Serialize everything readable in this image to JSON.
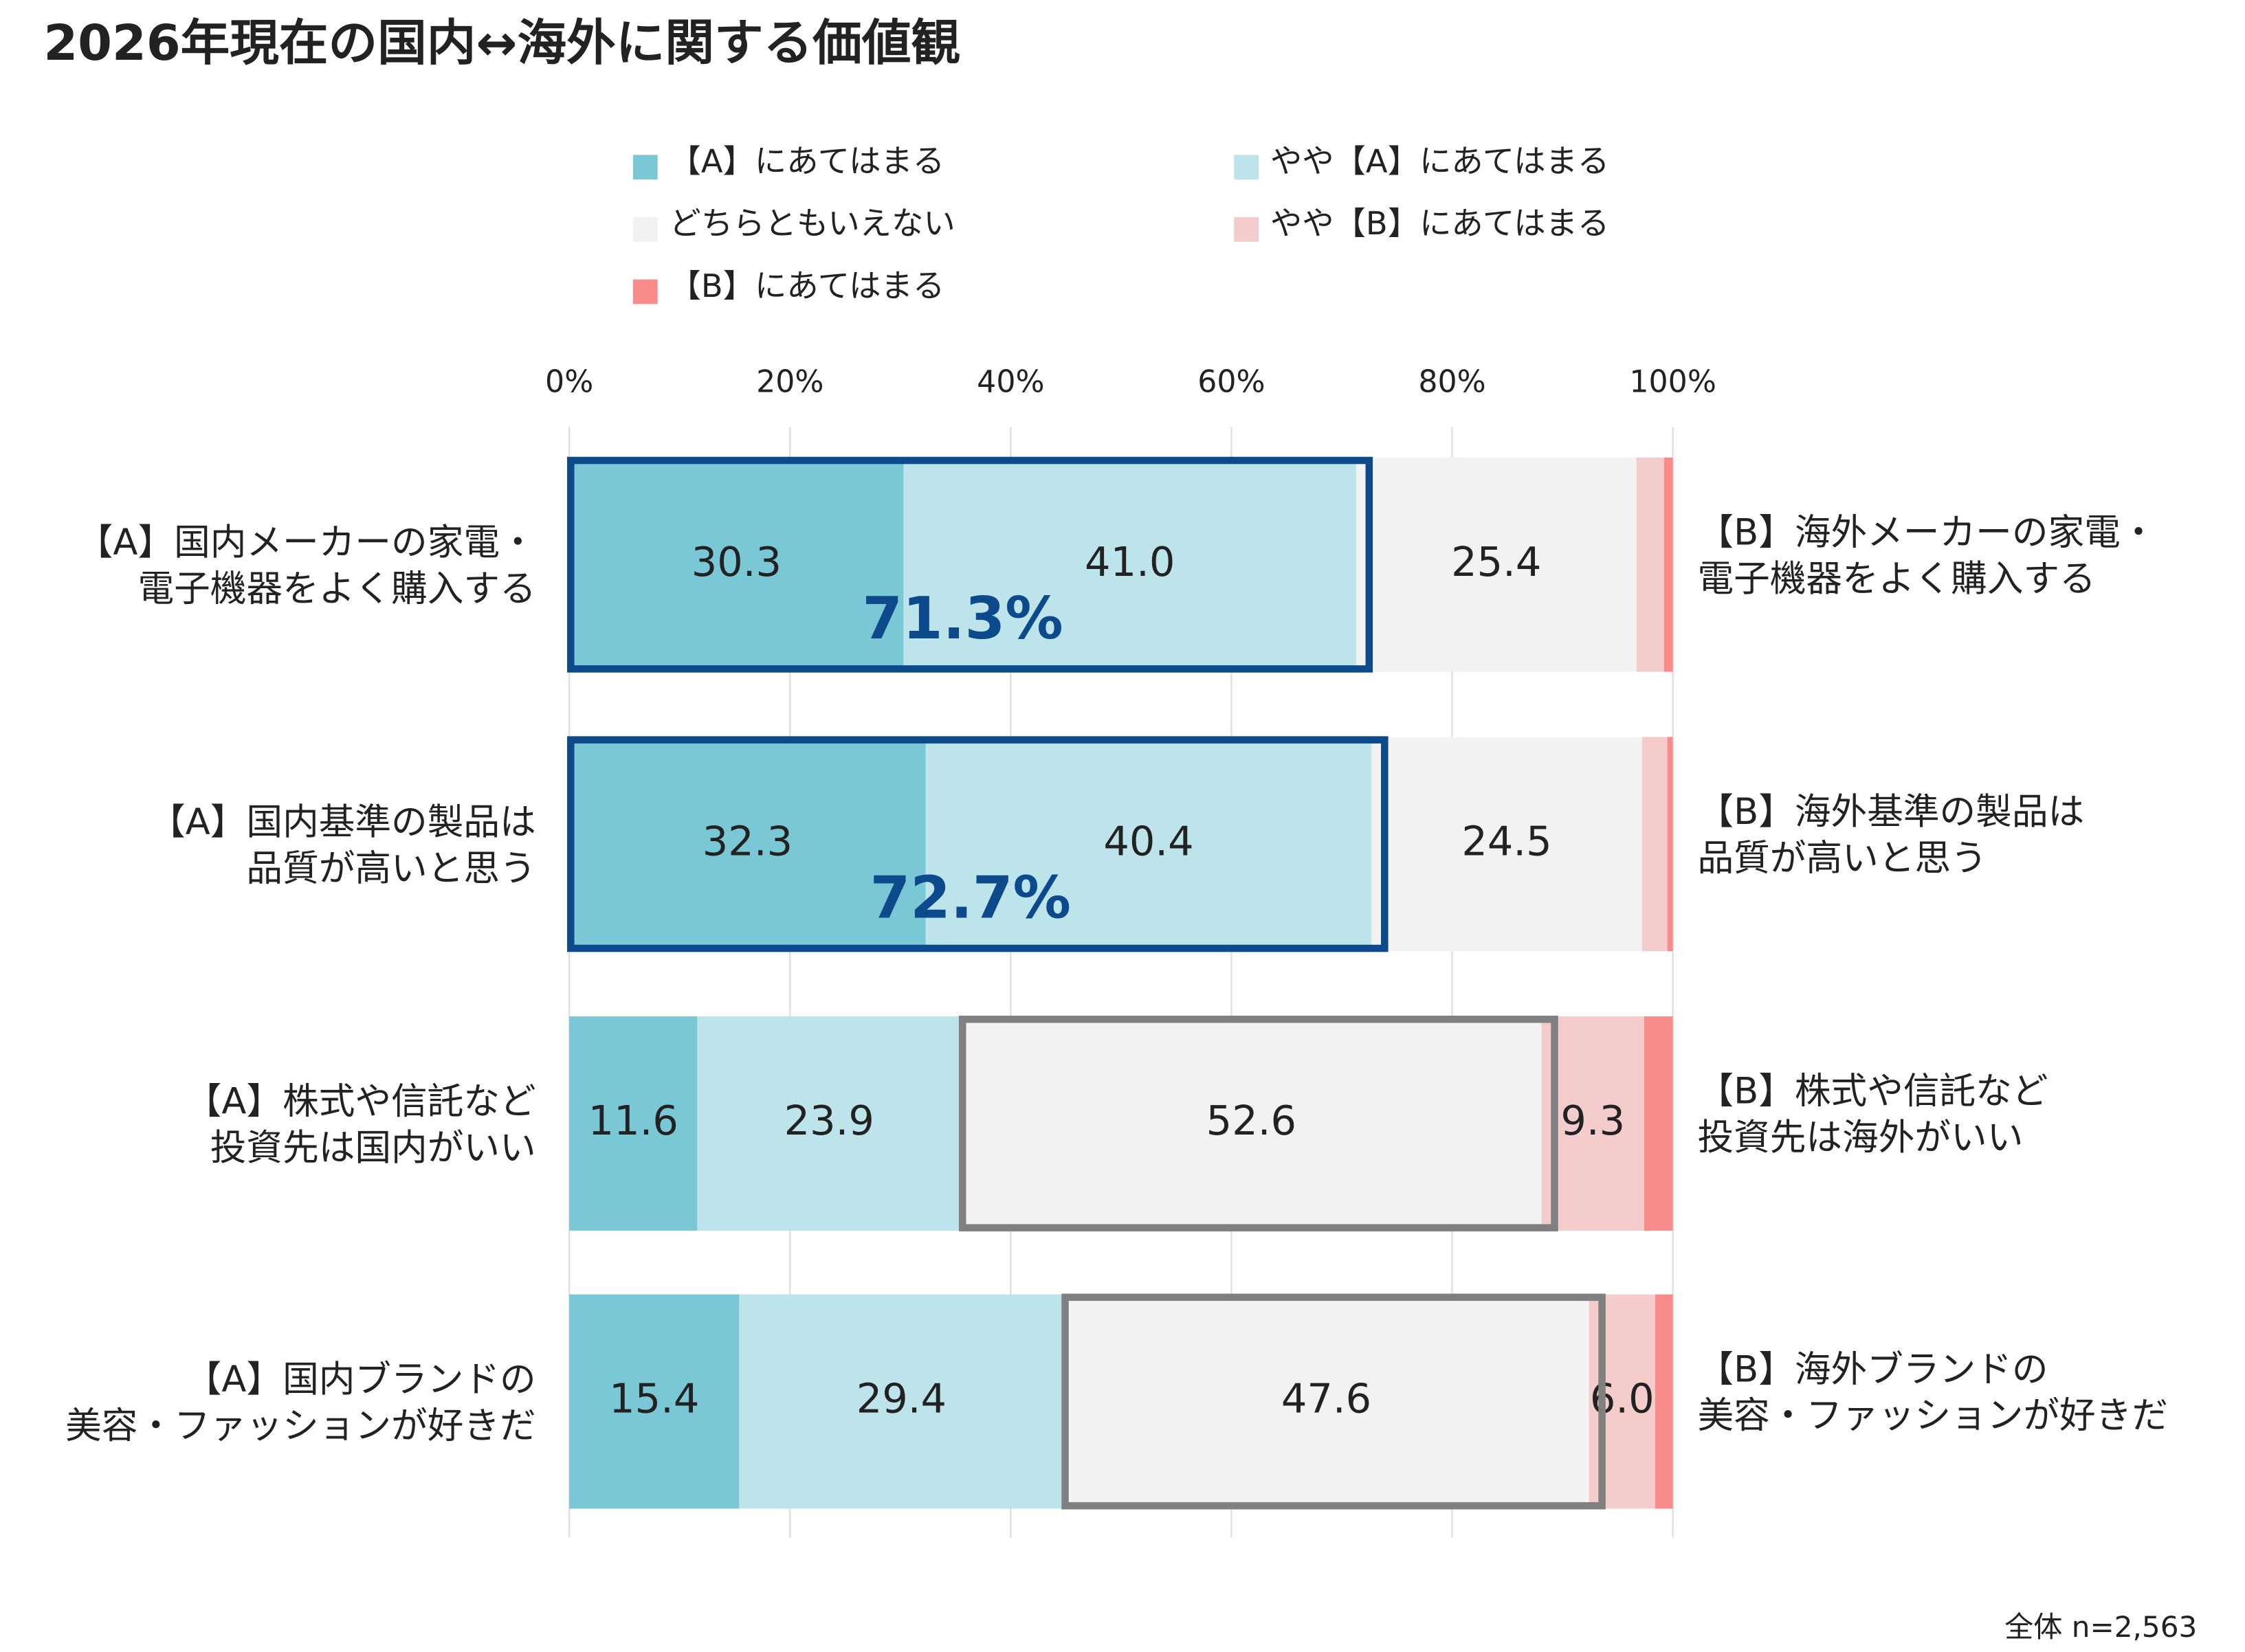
{
  "chart_data": {
    "type": "stacked-bar-horizontal",
    "title": "2026年現在の国内↔海外に関する価値観",
    "categories": [
      "【A】国内メーカーの家電・\n電子機器をよく購入する",
      "【A】国内基準の製品は\n品質が高いと思う",
      "【A】株式や信託など\n投資先は国内がいい",
      "【A】国内ブランドの\n美容・ファッションが好きだ"
    ],
    "categories_right": [
      "【B】海外メーカーの家電・\n電子機器をよく購入する",
      "【B】海外基準の製品は\n品質が高いと思う",
      "【B】株式や信託など\n投資先は海外がいい",
      "【B】海外ブランドの\n美容・ファッションが好きだ"
    ],
    "series": [
      {
        "name": "【A】にあてはまる",
        "color": "#7ac8d6",
        "values": [
          30.3,
          32.3,
          11.6,
          15.4
        ],
        "value_labels": [
          "30.3",
          "32.3",
          "11.6",
          "15.4"
        ]
      },
      {
        "name": "やや【A】にあてはまる",
        "color": "#bde3eb",
        "values": [
          41.0,
          40.4,
          23.9,
          29.4
        ],
        "value_labels": [
          "41.0",
          "40.4",
          "23.9",
          "29.4"
        ]
      },
      {
        "name": "どちらともいえない",
        "color": "#f2f2f2",
        "values": [
          25.4,
          24.5,
          52.6,
          47.6
        ],
        "value_labels": [
          "25.4",
          "24.5",
          "52.6",
          "47.6"
        ]
      },
      {
        "name": "やや【B】にあてはまる",
        "color": "#f4cccc",
        "values": [
          2.5,
          2.3,
          9.3,
          6.0
        ],
        "value_labels": [
          null,
          null,
          "9.3",
          "6.0"
        ]
      },
      {
        "name": "【B】にあてはまる",
        "color": "#f98b8b",
        "values": [
          0.8,
          0.5,
          2.6,
          1.6
        ],
        "value_labels": [
          null,
          null,
          null,
          null
        ]
      }
    ],
    "xlim": [
      0,
      100
    ],
    "xticks": [
      {
        "value": 0,
        "label": "0%"
      },
      {
        "value": 20,
        "label": "20%"
      },
      {
        "value": 40,
        "label": "40%"
      },
      {
        "value": 60,
        "label": "60%"
      },
      {
        "value": 80,
        "label": "80%"
      },
      {
        "value": 100,
        "label": "100%"
      }
    ],
    "grid": true,
    "highlights": [
      {
        "category": 0,
        "series": [
          0,
          1
        ],
        "label": "71.3%",
        "color": "#0d4a8c"
      },
      {
        "category": 1,
        "series": [
          0,
          1
        ],
        "label": "72.7%",
        "color": "#0d4a8c"
      },
      {
        "category": 2,
        "series": [
          2
        ],
        "color": "#808080"
      },
      {
        "category": 3,
        "series": [
          2
        ],
        "color": "#808080"
      }
    ],
    "note": "全体 n=2,563"
  }
}
